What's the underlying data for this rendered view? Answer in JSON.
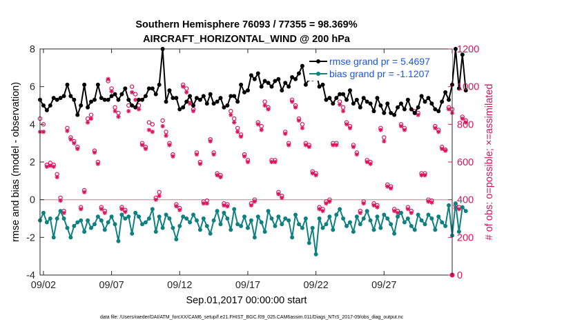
{
  "chart_data": {
    "type": "line",
    "title": "Southern Hemisphere 76093 / 77355 = 98.369%",
    "subtitle": "AIRCRAFT_HORIZONTAL_WIND @ 200 hPa",
    "xlabel": "Sep.01,2017 00:00:00 start",
    "ylabel": "rmse and bias (model - observation)",
    "y2label": "# of obs: o=possible; ×=assimilated",
    "footer": "data file: /Users/raeder/DAI/ATM_forcXX/CAM6_setup/f.e21.FHIST_BGC.f09_025.CAM6assim.011/Diags_NTrS_2017-09/obs_diag_output.nc",
    "x_unit": "day offset from Sep.01,2017 00:00",
    "xlim": [
      0.75,
      31.0
    ],
    "ylim": [
      -4,
      8
    ],
    "y2lim": [
      0,
      1200
    ],
    "x_ticks": [
      1,
      6,
      11,
      16,
      21,
      26
    ],
    "x_ticklabels": [
      "09/02",
      "09/07",
      "09/12",
      "09/17",
      "09/22",
      "09/27"
    ],
    "y_ticks": [
      -4,
      -2,
      0,
      2,
      4,
      6,
      8
    ],
    "y_ticklabels": [
      "-4",
      "-2",
      "0",
      "2",
      "4",
      "6",
      "8"
    ],
    "y2_ticks": [
      0,
      200,
      400,
      600,
      800,
      1000,
      1200
    ],
    "y2_ticklabels": [
      "0",
      "200",
      "400",
      "600",
      "800",
      "1000",
      "1200"
    ],
    "zero_line": 0,
    "x_step": 0.25,
    "x_start": 0.75,
    "series": [
      {
        "name": "rmse grand pr = 5.4697",
        "axis": "left",
        "color": "#000000",
        "values": [
          5.3,
          5.0,
          4.75,
          5.0,
          5.4,
          5.3,
          5.4,
          5.5,
          6.1,
          5.5,
          5.3,
          4.5,
          5.0,
          6.1,
          4.9,
          5.2,
          5.3,
          6.1,
          5.4,
          5.3,
          5.3,
          5.5,
          5.6,
          5.3,
          5.6,
          5.9,
          5.3,
          5.0,
          4.9,
          5.3,
          5.3,
          5.5,
          5.9,
          5.9,
          5.6,
          6.1,
          8.0,
          5.2,
          5.8,
          5.4,
          5.4,
          4.8,
          4.9,
          5.2,
          5.5,
          5.0,
          5.4,
          5.3,
          5.5,
          5.1,
          5.6,
          5.1,
          5.2,
          5.4,
          4.9,
          5.0,
          5.5,
          5.5,
          5.2,
          6.1,
          5.7,
          5.8,
          6.6,
          6.4,
          6.7,
          6.0,
          6.3,
          6.2,
          6.0,
          6.3,
          6.4,
          5.8,
          6.2,
          6.0,
          6.5,
          6.4,
          6.7,
          7.1,
          6.1,
          6.4,
          6.4,
          6.8,
          6.0,
          6.1,
          5.3,
          5.4,
          5.1,
          5.4,
          5.6,
          5.6,
          5.3,
          5.8,
          5.1,
          5.3,
          4.9,
          5.4,
          5.2,
          5.1,
          4.7,
          5.4,
          5.0,
          4.6,
          5.1,
          4.6,
          4.5,
          4.9,
          5.1,
          4.8,
          5.3,
          4.8,
          4.6,
          4.9,
          5.5,
          5.2,
          5.4,
          5.1,
          4.8,
          4.7,
          5.2,
          5.7,
          5.3,
          6.1,
          8.0,
          5.9,
          7.7,
          5.8
        ]
      },
      {
        "name": "bias grand pr = -1.1207",
        "axis": "left",
        "color": "#0f8080",
        "values": [
          -1.1,
          -0.7,
          -1.2,
          -1.0,
          -2.0,
          -1.0,
          -0.6,
          -1.0,
          -1.5,
          -2.0,
          -1.4,
          -1.2,
          -1.1,
          -1.7,
          -1.1,
          -1.5,
          -1.3,
          -0.9,
          -1.1,
          -1.6,
          -1.2,
          -0.9,
          -1.3,
          -2.2,
          -0.8,
          -1.0,
          -0.9,
          -1.8,
          -0.7,
          -0.9,
          -1.3,
          -1.2,
          -1.0,
          -0.5,
          -1.7,
          -0.9,
          -1.5,
          -0.8,
          -1.0,
          -1.5,
          -2.1,
          -1.4,
          -0.9,
          -1.0,
          -1.2,
          -0.8,
          -1.1,
          -1.6,
          -1.0,
          -1.4,
          -1.8,
          -1.1,
          -0.6,
          -1.3,
          -0.7,
          -1.0,
          -1.6,
          -0.5,
          -1.3,
          -1.4,
          -0.9,
          -1.5,
          -1.1,
          -2.0,
          -0.9,
          -1.2,
          -1.7,
          -0.6,
          -1.0,
          -1.4,
          -0.9,
          -1.3,
          -1.0,
          -1.1,
          -2.0,
          -0.8,
          -1.3,
          -1.5,
          -1.0,
          -2.3,
          -1.5,
          -2.9,
          -1.0,
          -1.5,
          -1.3,
          -0.9,
          -1.6,
          -0.8,
          -0.5,
          -1.0,
          -1.4,
          -1.2,
          -1.7,
          -0.9,
          -1.3,
          -1.0,
          -0.6,
          -1.1,
          -1.6,
          -0.9,
          -1.5,
          -0.8,
          -1.0,
          -1.3,
          -1.8,
          -0.9,
          -0.7,
          -1.2,
          -1.0,
          -1.4,
          -1.6,
          -0.8,
          -1.1,
          -1.3,
          -0.8,
          -1.0,
          -1.6,
          -0.9,
          -1.2,
          -1.4,
          -0.3,
          -1.9,
          -0.2,
          -1.7,
          -0.4,
          -0.6
        ]
      },
      {
        "name": "obs possible (o)",
        "axis": "right",
        "color": "#d8125b",
        "marker": "o",
        "values": [
          830,
          800,
          585,
          595,
          585,
          535,
          410,
          340,
          780,
          730,
          710,
          680,
          360,
          450,
          830,
          850,
          660,
          600,
          360,
          340,
          1030,
          990,
          890,
          860,
          360,
          345,
          900,
          1000,
          960,
          900,
          700,
          680,
          810,
          800,
          410,
          440,
          820,
          760,
          700,
          640,
          375,
          355,
          1010,
          990,
          930,
          880,
          650,
          600,
          390,
          395,
          720,
          650,
          540,
          530,
          380,
          375,
          870,
          830,
          780,
          745,
          640,
          610,
          380,
          400,
          810,
          790,
          920,
          890,
          610,
          610,
          440,
          420,
          760,
          700,
          930,
          900,
          830,
          800,
          700,
          690,
          550,
          540,
          360,
          350,
          390,
          400,
          700,
          700,
          920,
          890,
          810,
          790,
          690,
          650,
          340,
          390,
          610,
          600,
          380,
          370,
          780,
          730,
          480,
          470,
          350,
          340,
          800,
          780,
          360,
          340,
          870,
          860,
          540,
          540,
          400,
          395,
          790,
          770,
          680,
          665,
          890,
          880,
          370,
          360,
          840,
          820
        ]
      },
      {
        "name": "obs assimilated (×)",
        "axis": "right",
        "color": "#d8125b",
        "marker": "*",
        "values": [
          760,
          760,
          575,
          580,
          575,
          520,
          395,
          330,
          765,
          720,
          700,
          670,
          350,
          440,
          810,
          830,
          650,
          590,
          350,
          330,
          1040,
          975,
          870,
          840,
          350,
          335,
          870,
          970,
          930,
          880,
          690,
          670,
          770,
          760,
          400,
          420,
          790,
          740,
          690,
          630,
          365,
          345,
          1000,
          970,
          910,
          870,
          640,
          590,
          380,
          380,
          710,
          640,
          530,
          520,
          370,
          365,
          850,
          810,
          760,
          735,
          630,
          600,
          370,
          390,
          800,
          770,
          900,
          880,
          600,
          600,
          430,
          410,
          750,
          690,
          920,
          890,
          820,
          780,
          690,
          680,
          540,
          530,
          350,
          340,
          380,
          390,
          690,
          690,
          905,
          870,
          800,
          780,
          680,
          640,
          330,
          380,
          600,
          590,
          370,
          360,
          770,
          710,
          470,
          460,
          340,
          330,
          790,
          770,
          350,
          330,
          860,
          850,
          530,
          530,
          390,
          385,
          780,
          760,
          670,
          660,
          880,
          860,
          355,
          350,
          830,
          810
        ]
      }
    ],
    "legend": {
      "position": "top-right",
      "entries": [
        "rmse grand pr = 5.4697",
        "bias grand pr = -1.1207"
      ]
    }
  }
}
